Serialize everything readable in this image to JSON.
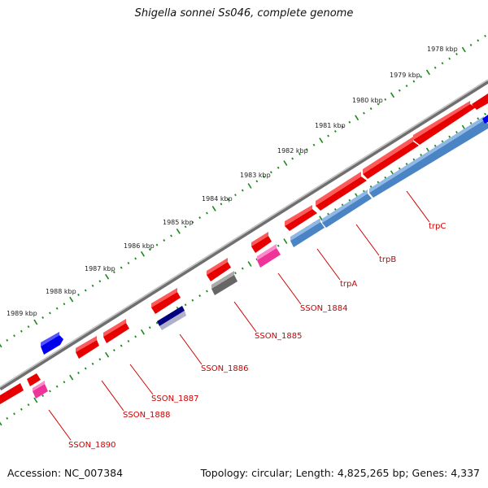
{
  "title": "Shigella sonnei Ss046, complete genome",
  "footer": {
    "accession": "Accession: NC_007384",
    "topology": "Topology: circular; Length: 4,825,265 bp; Genes: 4,337"
  },
  "colors": {
    "backbone": "#8c8c8c",
    "tick": "#1a8a1a",
    "forward_gene": "#e60000",
    "reverse_gene": "#4a84c4",
    "pseudo": "#ee3399",
    "rna": "#0000ee",
    "label": "#cc0000"
  },
  "kbp_labels": [
    "1978 kbp",
    "1979 kbp",
    "1980 kbp",
    "1981 kbp",
    "1982 kbp",
    "1983 kbp",
    "1984 kbp",
    "1985 kbp",
    "1986 kbp",
    "1987 kbp",
    "1988 kbp",
    "1989 kbp"
  ],
  "gene_labels": [
    "trpC",
    "trpB",
    "trpA",
    "SSON_1884",
    "SSON_1885",
    "SSON_1886",
    "SSON_1887",
    "SSON_1888",
    "SSON_1890"
  ]
}
